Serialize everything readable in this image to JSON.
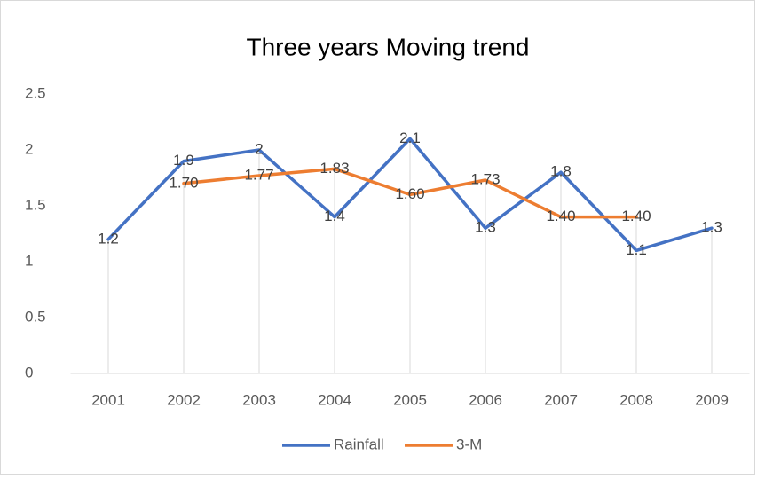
{
  "chart_data": {
    "type": "line",
    "title": "Three years Moving trend",
    "categories": [
      "2001",
      "2002",
      "2003",
      "2004",
      "2005",
      "2006",
      "2007",
      "2008",
      "2009"
    ],
    "series": [
      {
        "name": "Rainfall",
        "color": "#4472c4",
        "values": [
          1.2,
          1.9,
          2,
          1.4,
          2.1,
          1.3,
          1.8,
          1.1,
          1.3
        ]
      },
      {
        "name": "3-M",
        "color": "#ed7d31",
        "values": [
          null,
          1.7,
          1.77,
          1.83,
          1.6,
          1.73,
          1.4,
          1.4,
          null
        ],
        "value_labels": [
          null,
          "1.70",
          "1.77",
          "1.83",
          "1.60",
          "1.73",
          "1.40",
          "1.40",
          null
        ]
      }
    ],
    "ylim": [
      0,
      2.5
    ],
    "yticks": [
      0,
      0.5,
      1,
      1.5,
      2,
      2.5
    ],
    "grid": false,
    "legend": "bottom",
    "drop_lines": true
  }
}
